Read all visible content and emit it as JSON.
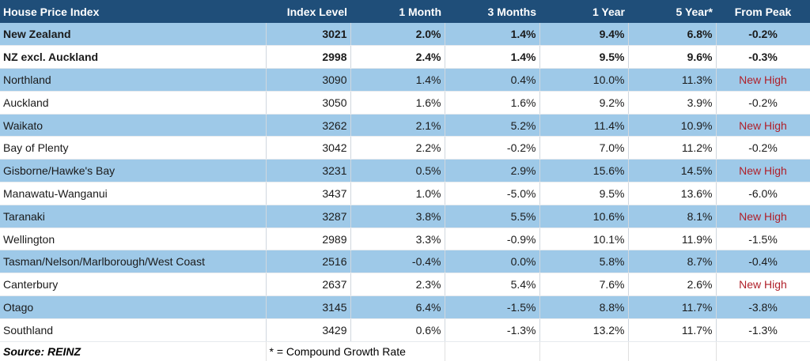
{
  "table": {
    "headers": [
      "House Price Index",
      "Index Level",
      "1 Month",
      "3 Months",
      "1 Year",
      "5 Year*",
      "From Peak"
    ],
    "rows": [
      {
        "cells": [
          "New Zealand",
          "3021",
          "2.0%",
          "1.4%",
          "9.4%",
          "6.8%",
          "-0.2%"
        ],
        "bold": true
      },
      {
        "cells": [
          "NZ excl. Auckland",
          "2998",
          "2.4%",
          "1.4%",
          "9.5%",
          "9.6%",
          "-0.3%"
        ],
        "bold": true
      },
      {
        "cells": [
          "Northland",
          "3090",
          "1.4%",
          "0.4%",
          "10.0%",
          "11.3%",
          "New High"
        ]
      },
      {
        "cells": [
          "Auckland",
          "3050",
          "1.6%",
          "1.6%",
          "9.2%",
          "3.9%",
          "-0.2%"
        ]
      },
      {
        "cells": [
          "Waikato",
          "3262",
          "2.1%",
          "5.2%",
          "11.4%",
          "10.9%",
          "New High"
        ]
      },
      {
        "cells": [
          "Bay of Plenty",
          "3042",
          "2.2%",
          "-0.2%",
          "7.0%",
          "11.2%",
          "-0.2%"
        ]
      },
      {
        "cells": [
          "Gisborne/Hawke's Bay",
          "3231",
          "0.5%",
          "2.9%",
          "15.6%",
          "14.5%",
          "New High"
        ]
      },
      {
        "cells": [
          "Manawatu-Wanganui",
          "3437",
          "1.0%",
          "-5.0%",
          "9.5%",
          "13.6%",
          "-6.0%"
        ]
      },
      {
        "cells": [
          "Taranaki",
          "3287",
          "3.8%",
          "5.5%",
          "10.6%",
          "8.1%",
          "New High"
        ]
      },
      {
        "cells": [
          "Wellington",
          "2989",
          "3.3%",
          "-0.9%",
          "10.1%",
          "11.9%",
          "-1.5%"
        ]
      },
      {
        "cells": [
          "Tasman/Nelson/Marlborough/West Coast",
          "2516",
          "-0.4%",
          "0.0%",
          "5.8%",
          "8.7%",
          "-0.4%"
        ]
      },
      {
        "cells": [
          "Canterbury",
          "2637",
          "2.3%",
          "5.4%",
          "7.6%",
          "2.6%",
          "New High"
        ]
      },
      {
        "cells": [
          "Otago",
          "3145",
          "6.4%",
          "-1.5%",
          "8.8%",
          "11.7%",
          "-3.8%"
        ]
      },
      {
        "cells": [
          "Southland",
          "3429",
          "0.6%",
          "-1.3%",
          "13.2%",
          "11.7%",
          "-1.3%"
        ]
      }
    ],
    "footer": {
      "source": "Source: REINZ",
      "note": "* = Compound Growth Rate"
    }
  },
  "colors": {
    "header_bg": "#1f4e79",
    "band_blue": "#9ec9e8",
    "new_high_text": "#b0202a"
  }
}
